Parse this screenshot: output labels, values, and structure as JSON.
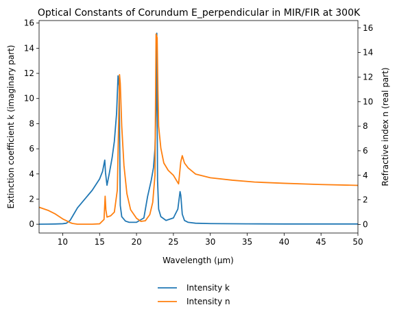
{
  "chart_data": {
    "type": "line",
    "title": "Optical Constants of Corundum E_perpendicular in MIR/FIR at 300K",
    "xlabel": "Wavelength (μm)",
    "ylabel_left": "Extinction coefficient k (imaginary part)",
    "ylabel_right": "Refractive index n (real part)",
    "xlim": [
      6.8,
      50
    ],
    "ylim_left": [
      -0.7,
      16.2
    ],
    "ylim_right": [
      -0.7,
      16.6
    ],
    "xticks": [
      10,
      15,
      20,
      25,
      30,
      35,
      40,
      45,
      50
    ],
    "yticks_left": [
      0,
      2,
      4,
      6,
      8,
      10,
      12,
      14,
      16
    ],
    "yticks_right": [
      0,
      2,
      4,
      6,
      8,
      10,
      12,
      14,
      16
    ],
    "grid": false,
    "legend_position": "below",
    "series": [
      {
        "name": "Intensity k",
        "axis": "left",
        "color": "#1f77b4",
        "x": [
          6.8,
          8,
          9,
          10,
          10.5,
          11,
          11.5,
          12,
          13,
          14,
          15,
          15.4,
          15.7,
          15.8,
          16.0,
          16.3,
          16.7,
          17.0,
          17.3,
          17.5,
          17.65,
          17.8,
          18.0,
          18.5,
          19,
          20,
          21,
          21.5,
          22,
          22.3,
          22.5,
          22.65,
          22.75,
          22.85,
          23.0,
          23.3,
          24,
          25,
          25.6,
          25.9,
          26.0,
          26.2,
          26.5,
          27,
          28,
          30,
          35,
          40,
          45,
          50
        ],
        "y": [
          0.0,
          0.01,
          0.02,
          0.04,
          0.08,
          0.3,
          0.8,
          1.3,
          2.0,
          2.7,
          3.6,
          4.2,
          5.1,
          4.1,
          3.1,
          4.0,
          5.3,
          6.6,
          8.8,
          11.8,
          11.0,
          1.5,
          0.6,
          0.25,
          0.15,
          0.15,
          0.5,
          2.2,
          3.5,
          4.5,
          6.0,
          9.5,
          15.2,
          3.5,
          1.2,
          0.6,
          0.3,
          0.5,
          1.2,
          2.6,
          2.3,
          0.8,
          0.3,
          0.15,
          0.08,
          0.05,
          0.03,
          0.02,
          0.02,
          0.02
        ]
      },
      {
        "name": "Intensity n",
        "axis": "right",
        "color": "#ff7f0e",
        "x": [
          6.8,
          8,
          9,
          10,
          10.5,
          11,
          11.3,
          12,
          14,
          15,
          15.6,
          15.75,
          15.85,
          16.0,
          16.5,
          17.0,
          17.4,
          17.6,
          17.7,
          17.8,
          18.0,
          18.3,
          18.7,
          19.2,
          20,
          20.6,
          21.2,
          21.8,
          22.2,
          22.5,
          22.65,
          22.8,
          22.9,
          23.0,
          23.3,
          23.7,
          24.3,
          25,
          25.7,
          26.0,
          26.2,
          26.5,
          27,
          28,
          30,
          33,
          36,
          40,
          45,
          50
        ],
        "y": [
          1.4,
          1.15,
          0.85,
          0.45,
          0.3,
          0.15,
          0.08,
          0.02,
          0.02,
          0.05,
          0.4,
          2.3,
          1.2,
          0.6,
          0.7,
          1.0,
          2.8,
          9.0,
          12.2,
          11.5,
          8.0,
          4.8,
          2.5,
          1.2,
          0.5,
          0.25,
          0.3,
          0.8,
          1.8,
          4.0,
          15.5,
          15.2,
          11.0,
          8.0,
          6.2,
          5.0,
          4.4,
          4.0,
          3.3,
          5.1,
          5.6,
          5.0,
          4.6,
          4.1,
          3.8,
          3.6,
          3.45,
          3.35,
          3.25,
          3.18
        ]
      }
    ]
  }
}
